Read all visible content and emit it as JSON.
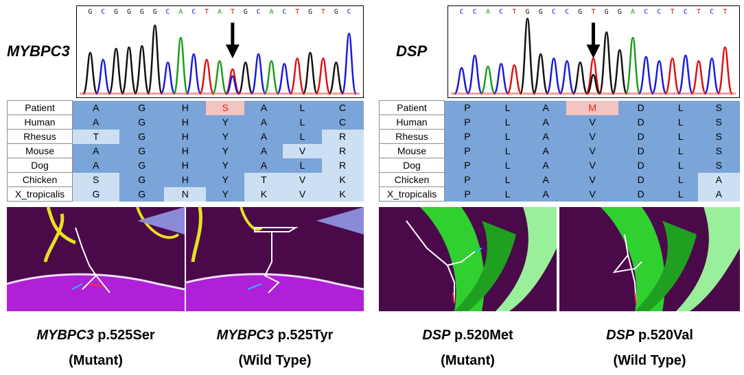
{
  "left": {
    "gene": "MYBPC3",
    "sequence": [
      "G",
      "C",
      "G",
      "G",
      "G",
      "G",
      "C",
      "A",
      "C",
      "T",
      "A",
      "T",
      "G",
      "C",
      "A",
      "C",
      "T",
      "G",
      "T",
      "G",
      "C"
    ],
    "alignment_rows": [
      {
        "species": "Patient",
        "residues": [
          "A",
          "G",
          "H",
          "S",
          "A",
          "L",
          "C"
        ]
      },
      {
        "species": "Human",
        "residues": [
          "A",
          "G",
          "H",
          "Y",
          "A",
          "L",
          "C"
        ]
      },
      {
        "species": "Rhesus",
        "residues": [
          "T",
          "G",
          "H",
          "Y",
          "A",
          "L",
          "R"
        ]
      },
      {
        "species": "Mouse",
        "residues": [
          "A",
          "G",
          "H",
          "Y",
          "A",
          "V",
          "R"
        ]
      },
      {
        "species": "Dog",
        "residues": [
          "A",
          "G",
          "H",
          "Y",
          "A",
          "L",
          "R"
        ]
      },
      {
        "species": "Chicken",
        "residues": [
          "S",
          "G",
          "H",
          "Y",
          "T",
          "V",
          "K"
        ]
      },
      {
        "species": "X_tropicalis",
        "residues": [
          "G",
          "G",
          "N",
          "Y",
          "K",
          "V",
          "K"
        ]
      }
    ],
    "caption_mutant": {
      "gene": "MYBPC3",
      "variant": "p.525Ser",
      "status": "(Mutant)"
    },
    "caption_wild": {
      "gene": "MYBPC3",
      "variant": "p.525Tyr",
      "status": "(Wild Type)"
    }
  },
  "right": {
    "gene": "DSP",
    "sequence": [
      "C",
      "C",
      "A",
      "C",
      "T",
      "G",
      "G",
      "C",
      "C",
      "G",
      "T",
      "G",
      "G",
      "A",
      "C",
      "C",
      "T",
      "C",
      "T",
      "C",
      "T"
    ],
    "alignment_rows": [
      {
        "species": "Patient",
        "residues": [
          "P",
          "L",
          "A",
          "M",
          "D",
          "L",
          "S"
        ]
      },
      {
        "species": "Human",
        "residues": [
          "P",
          "L",
          "A",
          "V",
          "D",
          "L",
          "S"
        ]
      },
      {
        "species": "Rhesus",
        "residues": [
          "P",
          "L",
          "A",
          "V",
          "D",
          "L",
          "S"
        ]
      },
      {
        "species": "Mouse",
        "residues": [
          "P",
          "L",
          "A",
          "V",
          "D",
          "L",
          "S"
        ]
      },
      {
        "species": "Dog",
        "residues": [
          "P",
          "L",
          "A",
          "V",
          "D",
          "L",
          "S"
        ]
      },
      {
        "species": "Chicken",
        "residues": [
          "P",
          "L",
          "A",
          "V",
          "D",
          "L",
          "A"
        ]
      },
      {
        "species": "X_tropicalis",
        "residues": [
          "P",
          "L",
          "A",
          "V",
          "D",
          "L",
          "A"
        ]
      }
    ],
    "caption_mutant": {
      "gene": "DSP",
      "variant": "p.520Met",
      "status": "(Mutant)"
    },
    "caption_wild": {
      "gene": "DSP",
      "variant": "p.520Val",
      "status": "(Wild Type)"
    }
  },
  "colors": {
    "A": "#1a9c1a",
    "C": "#1a1adc",
    "G": "#111111",
    "T": "#e01010",
    "conserved": "#7ba4d8",
    "variable": "#cddff2",
    "mutant_cell": "#f4c4c0",
    "mutant_text": "#e0201a",
    "arrow": "#000000"
  }
}
